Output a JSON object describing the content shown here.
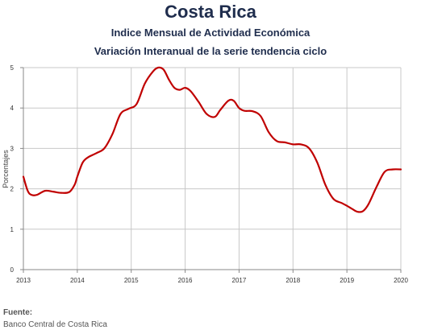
{
  "chart_data": {
    "type": "line",
    "title": "Costa Rica",
    "subtitle_1": "Indice Mensual de  Actividad Económica",
    "subtitle_2": "Variación Interanual de la serie tendencia ciclo",
    "ylabel": "Porcentajes",
    "xlabel": "",
    "ylim": [
      0,
      5
    ],
    "yticks": [
      "0",
      "1",
      "2",
      "3",
      "4",
      "5"
    ],
    "xlim": [
      2013,
      2020
    ],
    "xticks": [
      "2013",
      "2014",
      "2015",
      "2016",
      "2017",
      "2018",
      "2019",
      "2020"
    ],
    "grid": true,
    "legend": "none",
    "line_color": "#c00000",
    "series": [
      {
        "x": [
          2013.0,
          2013.08,
          2013.15,
          2013.25,
          2013.4,
          2013.55,
          2013.7,
          2013.85,
          2013.95,
          2014.0,
          2014.1,
          2014.2,
          2014.35,
          2014.5,
          2014.65,
          2014.8,
          2014.95,
          2015.1,
          2015.25,
          2015.4,
          2015.5,
          2015.6,
          2015.7,
          2015.8,
          2015.9,
          2016.0,
          2016.1,
          2016.25,
          2016.4,
          2016.55,
          2016.65,
          2016.8,
          2016.9,
          2017.0,
          2017.1,
          2017.25,
          2017.4,
          2017.55,
          2017.7,
          2017.85,
          2018.0,
          2018.15,
          2018.3,
          2018.45,
          2018.6,
          2018.75,
          2018.9,
          2019.0,
          2019.1,
          2019.2,
          2019.3,
          2019.4,
          2019.55,
          2019.7,
          2019.85,
          2020.0
        ],
        "y": [
          2.3,
          1.95,
          1.85,
          1.85,
          1.95,
          1.93,
          1.9,
          1.92,
          2.1,
          2.3,
          2.65,
          2.78,
          2.88,
          3.0,
          3.35,
          3.85,
          3.98,
          4.1,
          4.6,
          4.9,
          5.0,
          4.95,
          4.7,
          4.5,
          4.45,
          4.5,
          4.42,
          4.15,
          3.85,
          3.78,
          3.95,
          4.18,
          4.18,
          4.0,
          3.93,
          3.92,
          3.8,
          3.4,
          3.18,
          3.15,
          3.1,
          3.1,
          3.0,
          2.65,
          2.1,
          1.75,
          1.65,
          1.58,
          1.5,
          1.43,
          1.45,
          1.62,
          2.05,
          2.42,
          2.48,
          2.48
        ]
      }
    ]
  },
  "footer": {
    "source_label": "Fuente:",
    "source_text": "Banco Central de Costa Rica"
  }
}
